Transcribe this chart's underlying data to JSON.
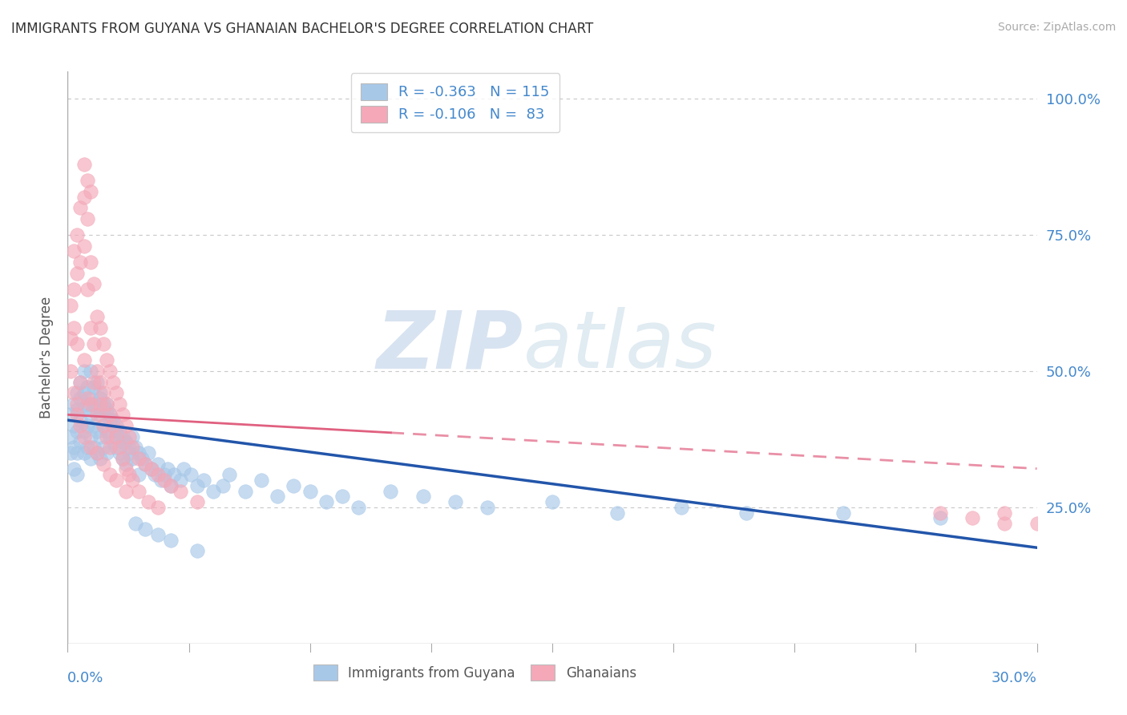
{
  "title": "IMMIGRANTS FROM GUYANA VS GHANAIAN BACHELOR'S DEGREE CORRELATION CHART",
  "source": "Source: ZipAtlas.com",
  "ylabel": "Bachelor's Degree",
  "legend_blue_label": "Immigrants from Guyana",
  "legend_pink_label": "Ghanaians",
  "r_blue": "-0.363",
  "n_blue": "115",
  "r_pink": "-0.106",
  "n_pink": "83",
  "blue_color": "#a8c8e8",
  "pink_color": "#f4a8b8",
  "blue_line_color": "#2255aa",
  "pink_line_color": "#e06080",
  "watermark_zip": "ZIP",
  "watermark_atlas": "atlas",
  "xlim": [
    0.0,
    0.3
  ],
  "ylim": [
    0.0,
    1.05
  ],
  "blue_scatter_x": [
    0.001,
    0.001,
    0.001,
    0.002,
    0.002,
    0.002,
    0.002,
    0.003,
    0.003,
    0.003,
    0.003,
    0.003,
    0.004,
    0.004,
    0.004,
    0.004,
    0.005,
    0.005,
    0.005,
    0.005,
    0.005,
    0.006,
    0.006,
    0.006,
    0.006,
    0.007,
    0.007,
    0.007,
    0.007,
    0.008,
    0.008,
    0.008,
    0.009,
    0.009,
    0.009,
    0.01,
    0.01,
    0.01,
    0.01,
    0.011,
    0.011,
    0.011,
    0.012,
    0.012,
    0.012,
    0.013,
    0.013,
    0.014,
    0.014,
    0.015,
    0.015,
    0.016,
    0.016,
    0.017,
    0.017,
    0.018,
    0.018,
    0.019,
    0.02,
    0.02,
    0.021,
    0.022,
    0.022,
    0.023,
    0.024,
    0.025,
    0.026,
    0.027,
    0.028,
    0.029,
    0.03,
    0.031,
    0.032,
    0.033,
    0.035,
    0.036,
    0.038,
    0.04,
    0.042,
    0.045,
    0.048,
    0.05,
    0.055,
    0.06,
    0.065,
    0.07,
    0.075,
    0.08,
    0.085,
    0.09,
    0.1,
    0.11,
    0.12,
    0.13,
    0.15,
    0.17,
    0.19,
    0.21,
    0.24,
    0.27,
    0.007,
    0.008,
    0.009,
    0.01,
    0.011,
    0.012,
    0.013,
    0.015,
    0.017,
    0.019,
    0.021,
    0.024,
    0.028,
    0.032,
    0.04
  ],
  "blue_scatter_y": [
    0.42,
    0.38,
    0.35,
    0.44,
    0.4,
    0.36,
    0.32,
    0.46,
    0.43,
    0.39,
    0.35,
    0.31,
    0.48,
    0.45,
    0.41,
    0.37,
    0.5,
    0.46,
    0.43,
    0.39,
    0.35,
    0.47,
    0.44,
    0.4,
    0.36,
    0.45,
    0.42,
    0.38,
    0.34,
    0.44,
    0.4,
    0.36,
    0.43,
    0.39,
    0.35,
    0.46,
    0.42,
    0.38,
    0.34,
    0.44,
    0.4,
    0.36,
    0.43,
    0.39,
    0.35,
    0.42,
    0.38,
    0.41,
    0.37,
    0.4,
    0.36,
    0.39,
    0.35,
    0.38,
    0.34,
    0.37,
    0.33,
    0.36,
    0.38,
    0.34,
    0.36,
    0.35,
    0.31,
    0.34,
    0.33,
    0.35,
    0.32,
    0.31,
    0.33,
    0.3,
    0.31,
    0.32,
    0.29,
    0.31,
    0.3,
    0.32,
    0.31,
    0.29,
    0.3,
    0.28,
    0.29,
    0.31,
    0.28,
    0.3,
    0.27,
    0.29,
    0.28,
    0.26,
    0.27,
    0.25,
    0.28,
    0.27,
    0.26,
    0.25,
    0.26,
    0.24,
    0.25,
    0.24,
    0.24,
    0.23,
    0.5,
    0.47,
    0.48,
    0.45,
    0.43,
    0.44,
    0.41,
    0.39,
    0.37,
    0.35,
    0.22,
    0.21,
    0.2,
    0.19,
    0.17
  ],
  "pink_scatter_x": [
    0.001,
    0.001,
    0.001,
    0.002,
    0.002,
    0.002,
    0.002,
    0.003,
    0.003,
    0.003,
    0.003,
    0.004,
    0.004,
    0.004,
    0.005,
    0.005,
    0.005,
    0.006,
    0.006,
    0.006,
    0.007,
    0.007,
    0.007,
    0.008,
    0.008,
    0.009,
    0.009,
    0.01,
    0.01,
    0.011,
    0.011,
    0.012,
    0.012,
    0.013,
    0.013,
    0.014,
    0.015,
    0.016,
    0.017,
    0.018,
    0.019,
    0.02,
    0.022,
    0.024,
    0.026,
    0.028,
    0.03,
    0.032,
    0.035,
    0.04,
    0.005,
    0.006,
    0.007,
    0.008,
    0.009,
    0.01,
    0.011,
    0.012,
    0.013,
    0.014,
    0.015,
    0.016,
    0.017,
    0.018,
    0.019,
    0.02,
    0.022,
    0.025,
    0.028,
    0.003,
    0.004,
    0.005,
    0.007,
    0.009,
    0.011,
    0.013,
    0.015,
    0.018,
    0.27,
    0.28,
    0.29,
    0.29,
    0.3
  ],
  "pink_scatter_y": [
    0.5,
    0.56,
    0.62,
    0.58,
    0.72,
    0.65,
    0.46,
    0.75,
    0.68,
    0.55,
    0.44,
    0.8,
    0.7,
    0.48,
    0.82,
    0.73,
    0.52,
    0.78,
    0.65,
    0.45,
    0.7,
    0.58,
    0.44,
    0.66,
    0.48,
    0.6,
    0.42,
    0.58,
    0.44,
    0.55,
    0.4,
    0.52,
    0.38,
    0.5,
    0.36,
    0.48,
    0.46,
    0.44,
    0.42,
    0.4,
    0.38,
    0.36,
    0.34,
    0.33,
    0.32,
    0.31,
    0.3,
    0.29,
    0.28,
    0.26,
    0.88,
    0.85,
    0.83,
    0.55,
    0.5,
    0.48,
    0.46,
    0.44,
    0.42,
    0.4,
    0.38,
    0.36,
    0.34,
    0.32,
    0.31,
    0.3,
    0.28,
    0.26,
    0.25,
    0.42,
    0.4,
    0.38,
    0.36,
    0.35,
    0.33,
    0.31,
    0.3,
    0.28,
    0.24,
    0.23,
    0.22,
    0.24,
    0.22
  ]
}
